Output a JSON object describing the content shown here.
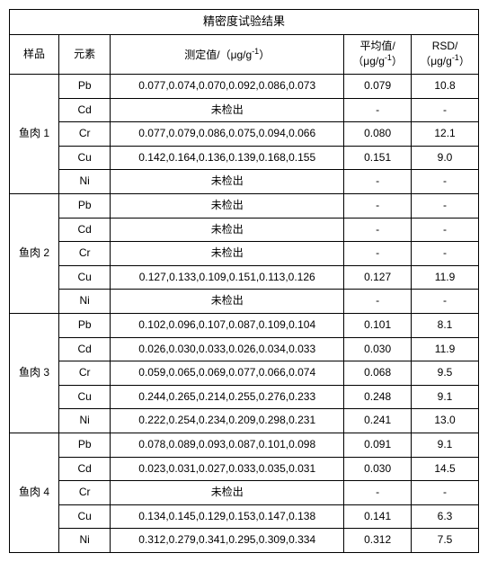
{
  "table": {
    "title": "精密度试验结果",
    "headers": {
      "sample": "样品",
      "element": "元素",
      "values_pre": "测定值/（μg/g",
      "values_sup": "-1",
      "values_post": "）",
      "avg_pre": "平均值/（μg/g",
      "avg_sup": "-1",
      "avg_post": "）",
      "rsd_pre": "RSD/（μg/g",
      "rsd_sup": "-1",
      "rsd_post": "）"
    },
    "groups": [
      {
        "sample": "鱼肉 1",
        "rows": [
          {
            "elem": "Pb",
            "vals": "0.077,0.074,0.070,0.092,0.086,0.073",
            "avg": "0.079",
            "rsd": "10.8"
          },
          {
            "elem": "Cd",
            "vals": "未检出",
            "avg": "-",
            "rsd": "-"
          },
          {
            "elem": "Cr",
            "vals": "0.077,0.079,0.086,0.075,0.094,0.066",
            "avg": "0.080",
            "rsd": "12.1"
          },
          {
            "elem": "Cu",
            "vals": "0.142,0.164,0.136,0.139,0.168,0.155",
            "avg": "0.151",
            "rsd": "9.0"
          },
          {
            "elem": "Ni",
            "vals": "未检出",
            "avg": "-",
            "rsd": "-"
          }
        ]
      },
      {
        "sample": "鱼肉 2",
        "rows": [
          {
            "elem": "Pb",
            "vals": "未检出",
            "avg": "-",
            "rsd": "-"
          },
          {
            "elem": "Cd",
            "vals": "未检出",
            "avg": "-",
            "rsd": "-"
          },
          {
            "elem": "Cr",
            "vals": "未检出",
            "avg": "-",
            "rsd": "-"
          },
          {
            "elem": "Cu",
            "vals": "0.127,0.133,0.109,0.151,0.113,0.126",
            "avg": "0.127",
            "rsd": "11.9"
          },
          {
            "elem": "Ni",
            "vals": "未检出",
            "avg": "-",
            "rsd": "-"
          }
        ]
      },
      {
        "sample": "鱼肉 3",
        "rows": [
          {
            "elem": "Pb",
            "vals": "0.102,0.096,0.107,0.087,0.109,0.104",
            "avg": "0.101",
            "rsd": "8.1"
          },
          {
            "elem": "Cd",
            "vals": "0.026,0.030,0.033,0.026,0.034,0.033",
            "avg": "0.030",
            "rsd": "11.9"
          },
          {
            "elem": "Cr",
            "vals": "0.059,0.065,0.069,0.077,0.066,0.074",
            "avg": "0.068",
            "rsd": "9.5"
          },
          {
            "elem": "Cu",
            "vals": "0.244,0.265,0.214,0.255,0.276,0.233",
            "avg": "0.248",
            "rsd": "9.1"
          },
          {
            "elem": "Ni",
            "vals": "0.222,0.254,0.234,0.209,0.298,0.231",
            "avg": "0.241",
            "rsd": "13.0"
          }
        ]
      },
      {
        "sample": "鱼肉 4",
        "rows": [
          {
            "elem": "Pb",
            "vals": "0.078,0.089,0.093,0.087,0.101,0.098",
            "avg": "0.091",
            "rsd": "9.1"
          },
          {
            "elem": "Cd",
            "vals": "0.023,0.031,0.027,0.033,0.035,0.031",
            "avg": "0.030",
            "rsd": "14.5"
          },
          {
            "elem": "Cr",
            "vals": "未检出",
            "avg": "-",
            "rsd": "-"
          },
          {
            "elem": "Cu",
            "vals": "0.134,0.145,0.129,0.153,0.147,0.138",
            "avg": "0.141",
            "rsd": "6.3"
          },
          {
            "elem": "Ni",
            "vals": "0.312,0.279,0.341,0.295,0.309,0.334",
            "avg": "0.312",
            "rsd": "7.5"
          }
        ]
      }
    ]
  }
}
